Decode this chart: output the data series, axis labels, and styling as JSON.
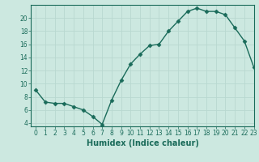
{
  "x": [
    0,
    1,
    2,
    3,
    4,
    5,
    6,
    7,
    8,
    9,
    10,
    11,
    12,
    13,
    14,
    15,
    16,
    17,
    18,
    19,
    20,
    21,
    22,
    23
  ],
  "y": [
    9.0,
    7.2,
    7.0,
    7.0,
    6.5,
    6.0,
    5.0,
    3.8,
    7.5,
    10.5,
    13.0,
    14.5,
    15.8,
    16.0,
    18.0,
    19.5,
    21.0,
    21.5,
    21.0,
    21.0,
    20.5,
    18.5,
    16.5,
    12.5
  ],
  "line_color": "#1a6b5a",
  "bg_color": "#cce8e0",
  "grid_color": "#b8d8d0",
  "xlabel": "Humidex (Indice chaleur)",
  "ylim": [
    3.5,
    22
  ],
  "xlim": [
    -0.5,
    23
  ],
  "yticks": [
    4,
    6,
    8,
    10,
    12,
    14,
    16,
    18,
    20
  ],
  "xticks": [
    0,
    1,
    2,
    3,
    4,
    5,
    6,
    7,
    8,
    9,
    10,
    11,
    12,
    13,
    14,
    15,
    16,
    17,
    18,
    19,
    20,
    21,
    22,
    23
  ],
  "xtick_labels": [
    "0",
    "1",
    "2",
    "3",
    "4",
    "5",
    "6",
    "7",
    "8",
    "9",
    "10",
    "11",
    "12",
    "13",
    "14",
    "15",
    "16",
    "17",
    "18",
    "19",
    "20",
    "21",
    "22",
    "23"
  ],
  "marker": "D",
  "marker_size": 2.5,
  "line_width": 1.0,
  "tick_fontsize": 5.5,
  "label_fontsize": 7
}
